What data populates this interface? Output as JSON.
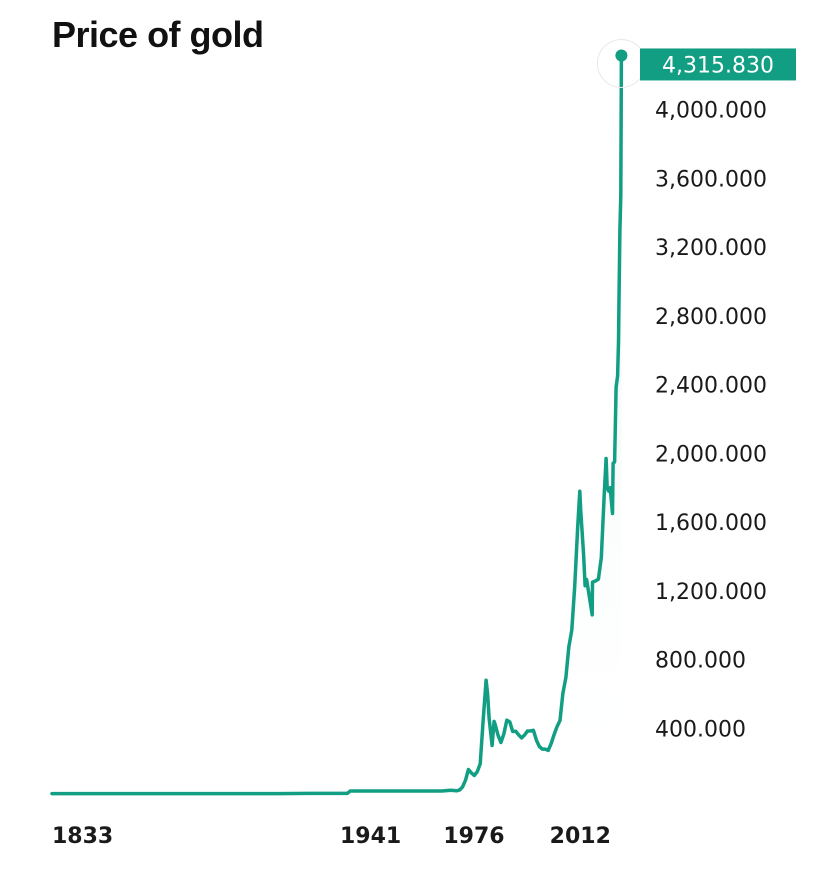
{
  "colors": {
    "line": "#129E83",
    "label_bg": "#129E83",
    "area_top": "#D8F0EA",
    "text": "#1a1a1a"
  },
  "chart_data": {
    "type": "line",
    "title": "Price of gold",
    "xlabel": "",
    "ylabel": "",
    "ylim": [
      0,
      4400
    ],
    "xlim": [
      1833,
      2026
    ],
    "x_ticks": [
      "1833",
      "1941",
      "1976",
      "2012"
    ],
    "y_ticks": [
      "400.000",
      "800.000",
      "1,200.000",
      "1,600.000",
      "2,000.000",
      "2,400.000",
      "2,800.000",
      "3,200.000",
      "3,600.000",
      "4,000.000"
    ],
    "y_tick_values": [
      400,
      800,
      1200,
      1600,
      2000,
      2400,
      2800,
      3200,
      3600,
      4000
    ],
    "last_value_label": "4,315.830",
    "grid": false,
    "series": [
      {
        "points": [
          [
            1833,
            20
          ],
          [
            1860,
            20
          ],
          [
            1910,
            20
          ],
          [
            1920,
            21
          ],
          [
            1933,
            21
          ],
          [
            1934,
            35
          ],
          [
            1950,
            35
          ],
          [
            1965,
            35
          ],
          [
            1968,
            39
          ],
          [
            1970,
            36
          ],
          [
            1971,
            41
          ],
          [
            1972,
            58
          ],
          [
            1973,
            97
          ],
          [
            1974,
            160
          ],
          [
            1975,
            140
          ],
          [
            1976,
            125
          ],
          [
            1977,
            148
          ],
          [
            1978,
            193
          ],
          [
            1979,
            450
          ],
          [
            1980,
            680
          ],
          [
            1980.5,
            600
          ],
          [
            1981,
            460
          ],
          [
            1982,
            300
          ],
          [
            1982.7,
            440
          ],
          [
            1983,
            425
          ],
          [
            1984,
            360
          ],
          [
            1985,
            317
          ],
          [
            1986,
            368
          ],
          [
            1987,
            447
          ],
          [
            1988,
            437
          ],
          [
            1989,
            381
          ],
          [
            1990,
            383
          ],
          [
            1991,
            362
          ],
          [
            1992,
            344
          ],
          [
            1993,
            360
          ],
          [
            1994,
            384
          ],
          [
            1995,
            384
          ],
          [
            1996,
            388
          ],
          [
            1997,
            331
          ],
          [
            1998,
            294
          ],
          [
            1999,
            279
          ],
          [
            2000,
            279
          ],
          [
            2001,
            271
          ],
          [
            2002,
            310
          ],
          [
            2003,
            363
          ],
          [
            2004,
            409
          ],
          [
            2005,
            445
          ],
          [
            2006,
            604
          ],
          [
            2007,
            696
          ],
          [
            2008,
            872
          ],
          [
            2009,
            972
          ],
          [
            2010,
            1225
          ],
          [
            2011,
            1572
          ],
          [
            2011.7,
            1780
          ],
          [
            2012,
            1669
          ],
          [
            2013,
            1411
          ],
          [
            2013.5,
            1230
          ],
          [
            2014,
            1266
          ],
          [
            2015,
            1160
          ],
          [
            2015.9,
            1060
          ],
          [
            2016,
            1251
          ],
          [
            2017,
            1257
          ],
          [
            2018,
            1268
          ],
          [
            2019,
            1393
          ],
          [
            2020,
            1770
          ],
          [
            2020.6,
            1970
          ],
          [
            2021,
            1799
          ],
          [
            2021.5,
            1780
          ],
          [
            2022,
            1800
          ],
          [
            2022.8,
            1650
          ],
          [
            2023,
            1943
          ],
          [
            2023.5,
            1950
          ],
          [
            2024,
            2386
          ],
          [
            2024.5,
            2450
          ],
          [
            2024.8,
            2650
          ],
          [
            2025,
            2900
          ],
          [
            2025.3,
            3300
          ],
          [
            2025.6,
            3500
          ],
          [
            2025.8,
            4315.83
          ]
        ]
      }
    ]
  }
}
